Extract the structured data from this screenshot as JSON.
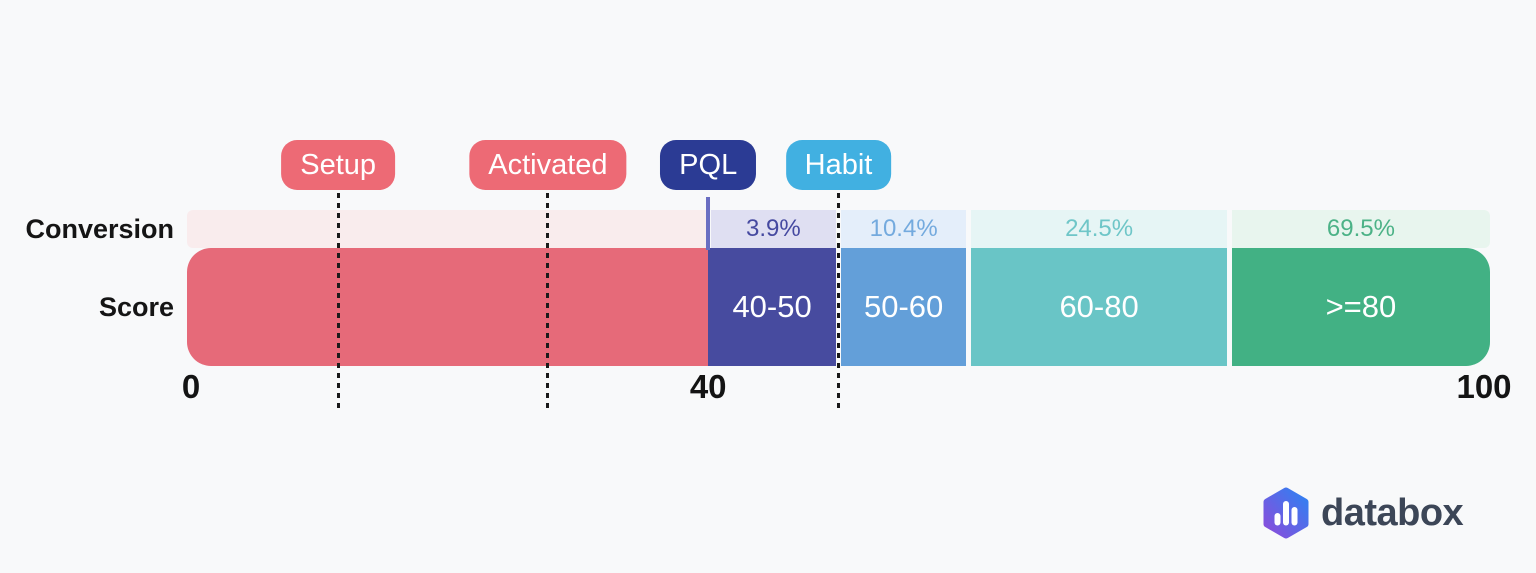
{
  "background_color": "#f8f9fa",
  "chart_data": {
    "type": "bar",
    "title": "",
    "orientation": "horizontal-stacked-scale",
    "axis": {
      "min": 0,
      "max": 100,
      "ticks": [
        0,
        40,
        100
      ]
    },
    "rows": {
      "conversion_label": "Conversion",
      "score_label": "Score"
    },
    "segments": [
      {
        "from": 0,
        "to": 40,
        "score_label": "",
        "conversion": "",
        "bar_color": "#e66a79",
        "band_color": "#f9eced",
        "band_text_color": "#e66a79"
      },
      {
        "from": 40,
        "to": 50,
        "score_label": "40-50",
        "conversion": "3.9%",
        "bar_color": "#474b9f",
        "band_color": "#dfdff2",
        "band_text_color": "#4549a0"
      },
      {
        "from": 50,
        "to": 60,
        "score_label": "50-60",
        "conversion": "10.4%",
        "bar_color": "#639fd9",
        "band_color": "#e4eefa",
        "band_text_color": "#74aade"
      },
      {
        "from": 60,
        "to": 80,
        "score_label": "60-80",
        "conversion": "24.5%",
        "bar_color": "#69c5c6",
        "band_color": "#e6f5f5",
        "band_text_color": "#6fc6c8"
      },
      {
        "from": 80,
        "to": 100,
        "score_label": ">=80",
        "conversion": "69.5%",
        "bar_color": "#42b184",
        "band_color": "#e8f5ee",
        "band_text_color": "#4cb287"
      }
    ],
    "markers": [
      {
        "label": "Setup",
        "score": 11.6,
        "pill_color": "#ed6a75",
        "text_color": "#ffffff",
        "line": "dashed",
        "line_color": "#1a1a1a"
      },
      {
        "label": "Activated",
        "score": 27.7,
        "pill_color": "#ed6a75",
        "text_color": "#ffffff",
        "line": "dashed",
        "line_color": "#1a1a1a"
      },
      {
        "label": "PQL",
        "score": 40,
        "pill_color": "#2b3b94",
        "text_color": "#ffffff",
        "line": "solid",
        "line_color": "#6a6ec2"
      },
      {
        "label": "Habit",
        "score": 50,
        "pill_color": "#41b0e1",
        "text_color": "#ffffff",
        "line": "dashed",
        "line_color": "#1a1a1a"
      }
    ]
  },
  "logo": {
    "text": "databox",
    "text_color": "#3c4657",
    "hex_gradient_from": "#8b4ddb",
    "hex_gradient_to": "#2f81f2"
  }
}
